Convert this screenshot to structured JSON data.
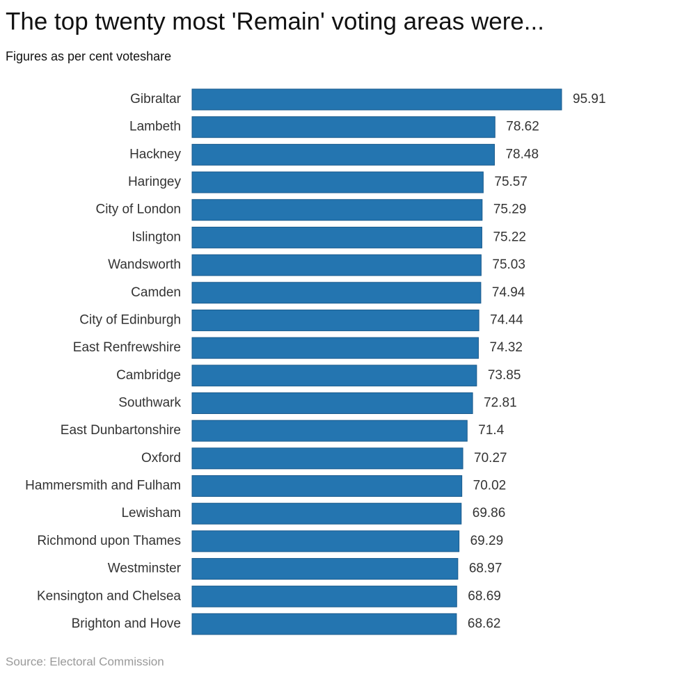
{
  "chart_data": {
    "type": "bar",
    "orientation": "horizontal",
    "title": "The top twenty most 'Remain' voting areas were...",
    "subtitle": "Figures as per cent voteshare",
    "source": "Source: Electoral Commission",
    "color": "#2475b0",
    "categories": [
      "Gibraltar",
      "Lambeth",
      "Hackney",
      "Haringey",
      "City of London",
      "Islington",
      "Wandsworth",
      "Camden",
      "City of Edinburgh",
      "East Renfrewshire",
      "Cambridge",
      "Southwark",
      "East Dunbartonshire",
      "Oxford",
      "Hammersmith and Fulham",
      "Lewisham",
      "Richmond upon Thames",
      "Westminster",
      "Kensington and Chelsea",
      "Brighton and Hove"
    ],
    "values": [
      95.91,
      78.62,
      78.48,
      75.57,
      75.29,
      75.22,
      75.03,
      74.94,
      74.44,
      74.32,
      73.85,
      72.81,
      71.4,
      70.27,
      70.02,
      69.86,
      69.29,
      68.97,
      68.69,
      68.62
    ]
  }
}
